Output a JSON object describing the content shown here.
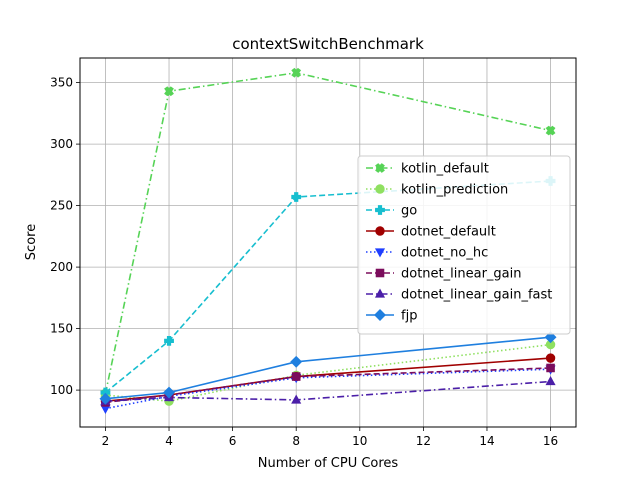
{
  "chart_data": {
    "type": "line",
    "title": "contextSwitchBenchmark",
    "xlabel": "Number of CPU Cores",
    "ylabel": "Score",
    "x": [
      2,
      4,
      8,
      16
    ],
    "xticks": [
      2,
      4,
      6,
      8,
      10,
      12,
      14,
      16
    ],
    "yticks": [
      100,
      150,
      200,
      250,
      300,
      350
    ],
    "xlim": [
      1.2,
      16.8
    ],
    "ylim": [
      70,
      370
    ],
    "grid": true,
    "legend_position": "center-right",
    "series": [
      {
        "name": "kotlin_default",
        "values": [
          97,
          343,
          358,
          311
        ],
        "color": "#56d356",
        "dash": "dashdot",
        "marker": "X"
      },
      {
        "name": "kotlin_prediction",
        "values": [
          96,
          91,
          112,
          137
        ],
        "color": "#8fe060",
        "dash": "dotted",
        "marker": "circle"
      },
      {
        "name": "go",
        "values": [
          98,
          140,
          257,
          270
        ],
        "color": "#17becf",
        "dash": "dashed",
        "marker": "plus"
      },
      {
        "name": "dotnet_default",
        "values": [
          91,
          96,
          111,
          126
        ],
        "color": "#a00000",
        "dash": "solid",
        "marker": "circle"
      },
      {
        "name": "dotnet_no_hc",
        "values": [
          85,
          95,
          110,
          117
        ],
        "color": "#1f3fff",
        "dash": "dotted",
        "marker": "triangle-down"
      },
      {
        "name": "dotnet_linear_gain",
        "values": [
          90,
          96,
          111,
          118
        ],
        "color": "#7b0d5c",
        "dash": "dashed",
        "marker": "square"
      },
      {
        "name": "dotnet_linear_gain_fast",
        "values": [
          91,
          94,
          92,
          107
        ],
        "color": "#4b1fa8",
        "dash": "dashdot",
        "marker": "triangle-up"
      },
      {
        "name": "fjp",
        "values": [
          93,
          98,
          123,
          143
        ],
        "color": "#1f7fdf",
        "dash": "solid",
        "marker": "diamond"
      }
    ]
  }
}
